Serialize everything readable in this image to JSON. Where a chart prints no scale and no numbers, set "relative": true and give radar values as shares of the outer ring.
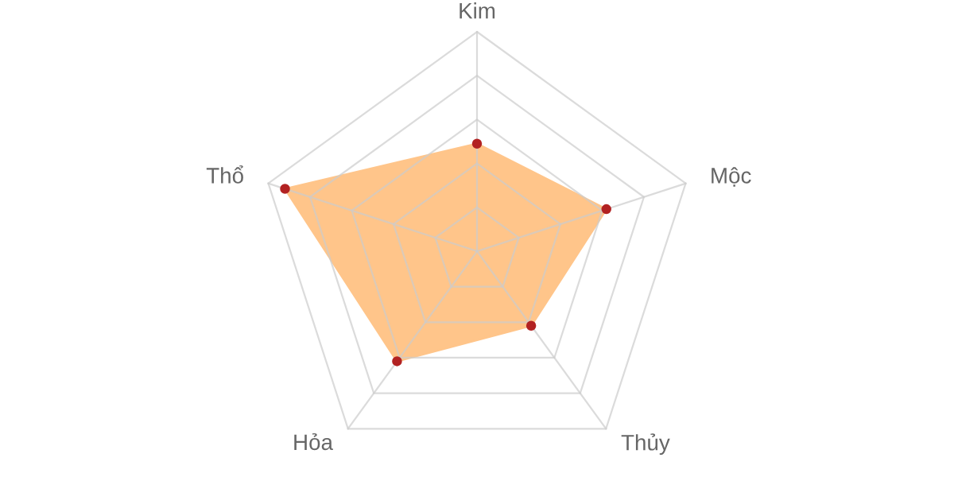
{
  "chart_data": {
    "type": "radar",
    "relative": true,
    "categories": [
      "Kim",
      "Mộc",
      "Thủy",
      "Hỏa",
      "Thổ"
    ],
    "series": [
      {
        "color": "#ffc58a",
        "values": [
          0.49,
          0.62,
          0.42,
          0.62,
          0.92
        ]
      }
    ],
    "grid": true,
    "marker": "circle"
  }
}
